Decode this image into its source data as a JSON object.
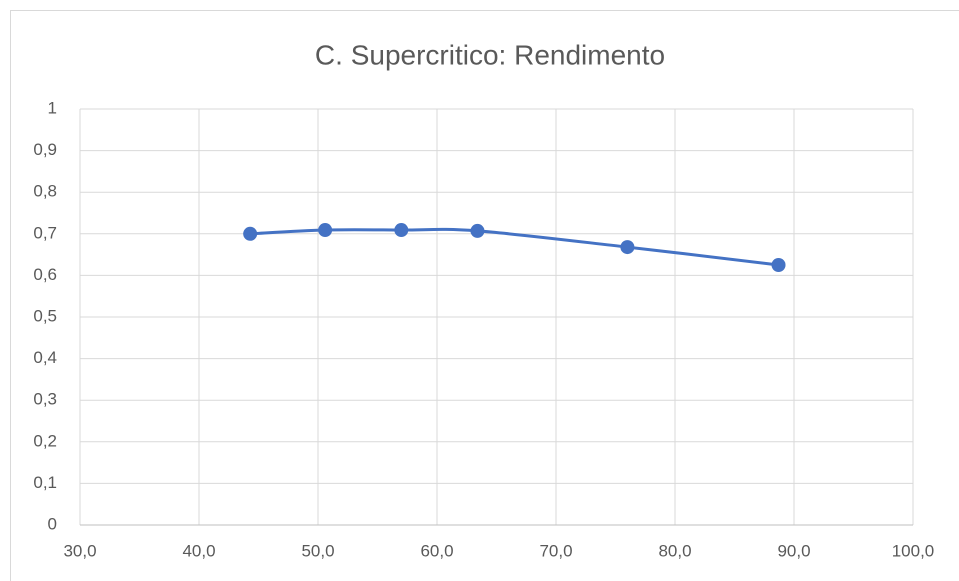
{
  "chart_data": {
    "type": "scatter",
    "title": "C. Supercritico: Rendimento",
    "x": [
      44.3,
      50.6,
      57.0,
      63.4,
      76.0,
      88.7
    ],
    "series": [
      {
        "color": "#4472c4",
        "values": [
          0.7,
          0.709,
          0.709,
          0.707,
          0.668,
          0.625
        ]
      }
    ],
    "xlim": [
      30,
      100
    ],
    "xticks": [
      {
        "value": 30,
        "label": "30,0"
      },
      {
        "value": 40,
        "label": "40,0"
      },
      {
        "value": 50,
        "label": "50,0"
      },
      {
        "value": 60,
        "label": "60,0"
      },
      {
        "value": 70,
        "label": "70,0"
      },
      {
        "value": 80,
        "label": "80,0"
      },
      {
        "value": 90,
        "label": "90,0"
      },
      {
        "value": 100,
        "label": "100,0"
      }
    ],
    "ylim": [
      0,
      1
    ],
    "yticks": [
      0,
      {
        "value": 0.1,
        "label": "0,1"
      },
      {
        "value": 0.2,
        "label": "0,2"
      },
      {
        "value": 0.3,
        "label": "0,3"
      },
      {
        "value": 0.4,
        "label": "0,4"
      },
      {
        "value": 0.5,
        "label": "0,5"
      },
      {
        "value": 0.6,
        "label": "0,6"
      },
      {
        "value": 0.7,
        "label": "0,7"
      },
      {
        "value": 0.8,
        "label": "0,8"
      },
      {
        "value": 0.9,
        "label": "0,9"
      },
      1
    ],
    "grid": true,
    "smooth": true
  }
}
